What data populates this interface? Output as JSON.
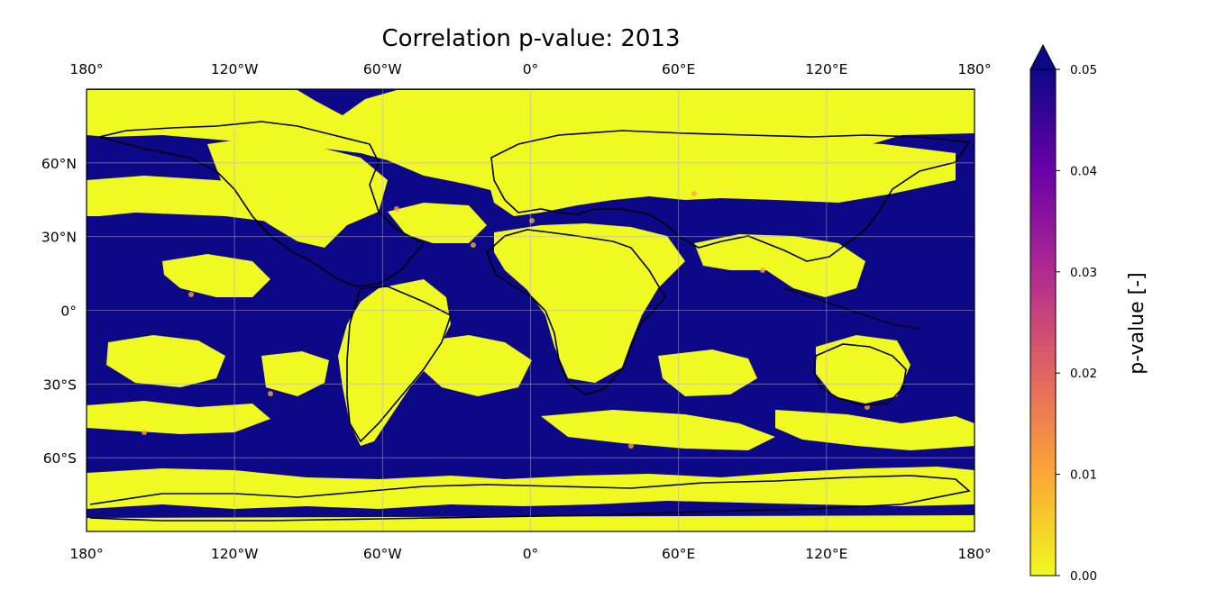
{
  "figure": {
    "title": "Correlation p-value: 2013",
    "map": {
      "projection": "PlateCarree",
      "extent": {
        "lon": [
          -180,
          180
        ],
        "lat": [
          -90,
          90
        ]
      },
      "gridlines": true,
      "lon_ticks": [
        {
          "value": -180,
          "label": "180°"
        },
        {
          "value": -120,
          "label": "120°W"
        },
        {
          "value": -60,
          "label": "60°W"
        },
        {
          "value": 0,
          "label": "0°"
        },
        {
          "value": 60,
          "label": "60°E"
        },
        {
          "value": 120,
          "label": "120°E"
        },
        {
          "value": 180,
          "label": "180°"
        }
      ],
      "lat_ticks": [
        {
          "value": 60,
          "label": "60°N"
        },
        {
          "value": 30,
          "label": "30°N"
        },
        {
          "value": 0,
          "label": "0°"
        },
        {
          "value": -30,
          "label": "30°S"
        },
        {
          "value": -60,
          "label": "60°S"
        }
      ],
      "colors": {
        "low": "#f0f921",
        "high": "#0d0887",
        "coastline": "#000000",
        "grid": "#b0b0c8"
      }
    },
    "colorbar": {
      "label": "p-value [-]",
      "cmap": "plasma_r",
      "vmin": 0.0,
      "vmax": 0.05,
      "extend": "max",
      "ticks": [
        {
          "value": 0.0,
          "label": "0.00"
        },
        {
          "value": 0.01,
          "label": "0.01"
        },
        {
          "value": 0.02,
          "label": "0.02"
        },
        {
          "value": 0.03,
          "label": "0.03"
        },
        {
          "value": 0.04,
          "label": "0.04"
        },
        {
          "value": 0.05,
          "label": "0.05"
        }
      ],
      "stops": [
        "#f0f921",
        "#fca636",
        "#e16462",
        "#b12a90",
        "#6a00a8",
        "#0d0887"
      ]
    }
  }
}
